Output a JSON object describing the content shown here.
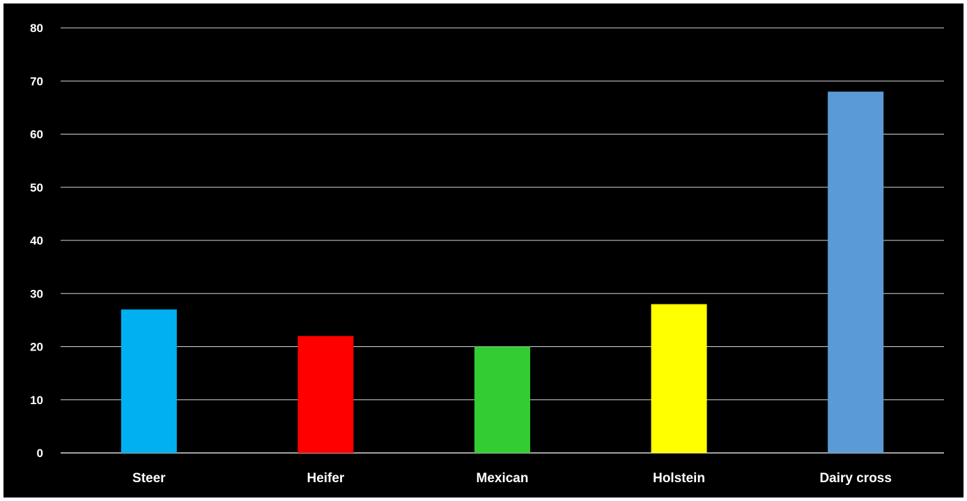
{
  "chart_data": {
    "type": "bar",
    "categories": [
      "Steer",
      "Heifer",
      "Mexican",
      "Holstein",
      "Dairy cross"
    ],
    "values": [
      27,
      22,
      20,
      28,
      68
    ],
    "colors": [
      "#00b0f0",
      "#ff0000",
      "#33cc33",
      "#ffff00",
      "#5b9bd5"
    ],
    "ylim": [
      0,
      80
    ],
    "yticks": [
      0,
      10,
      20,
      30,
      40,
      50,
      60,
      70,
      80
    ],
    "grid": true,
    "background": "#000000",
    "gridline_color": "#d9d9d9",
    "text_color": "#ffffff",
    "title": "",
    "xlabel": "",
    "ylabel": ""
  }
}
